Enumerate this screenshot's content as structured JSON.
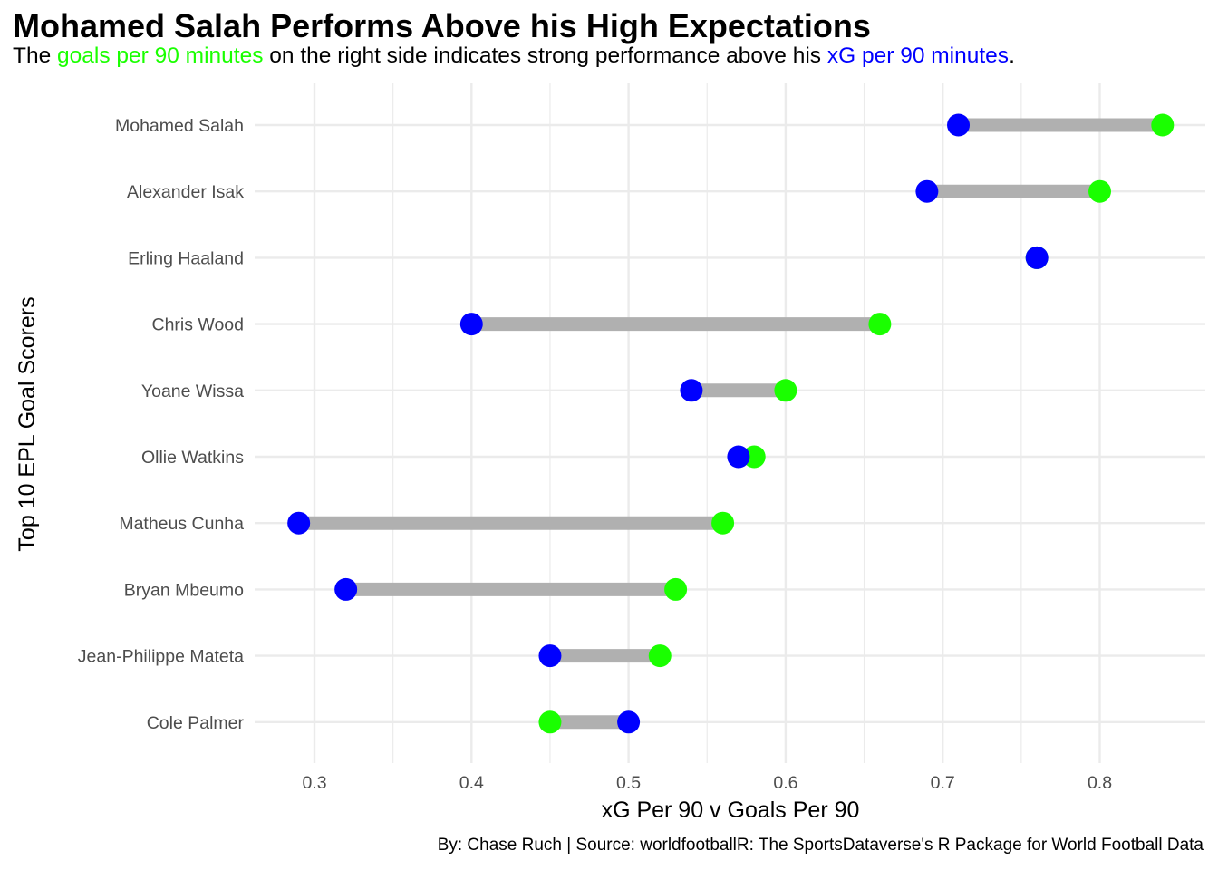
{
  "header": {
    "title": "Mohamed Salah Performs Above his High Expectations",
    "subtitle_parts": {
      "p1": "The ",
      "goals": "goals per 90 minutes",
      "p2": " on the right side indicates strong performance above his ",
      "xg": "xG per 90 minutes",
      "p3": "."
    }
  },
  "caption": "By: Chase Ruch | Source: worldfootballR: The SportsDataverse's R Package for World Football Data",
  "colors": {
    "xg": "#0000ff",
    "goals": "#1aff00",
    "segment": "#b0b0b0",
    "grid": "#ebebeb"
  },
  "chart_data": {
    "type": "dumbbell",
    "xlabel": "xG Per 90 v Goals Per 90",
    "ylabel": "Top 10 EPL Goal Scorers",
    "xlim": [
      0.265,
      0.855
    ],
    "xticks": [
      0.3,
      0.4,
      0.5,
      0.6,
      0.7,
      0.8
    ],
    "xtick_labels": [
      "0.3",
      "0.4",
      "0.5",
      "0.6",
      "0.7",
      "0.8"
    ],
    "players": [
      {
        "name": "Mohamed Salah",
        "xg": 0.71,
        "goals": 0.84
      },
      {
        "name": "Alexander Isak",
        "xg": 0.69,
        "goals": 0.8
      },
      {
        "name": "Erling Haaland",
        "xg": 0.76,
        "goals": 0.76
      },
      {
        "name": "Chris Wood",
        "xg": 0.4,
        "goals": 0.66
      },
      {
        "name": "Yoane Wissa",
        "xg": 0.54,
        "goals": 0.6
      },
      {
        "name": "Ollie Watkins",
        "xg": 0.57,
        "goals": 0.58
      },
      {
        "name": "Matheus Cunha",
        "xg": 0.29,
        "goals": 0.56
      },
      {
        "name": "Bryan Mbeumo",
        "xg": 0.32,
        "goals": 0.53
      },
      {
        "name": "Jean-Philippe Mateta",
        "xg": 0.45,
        "goals": 0.52
      },
      {
        "name": "Cole Palmer",
        "xg": 0.5,
        "goals": 0.45
      }
    ],
    "grid": true,
    "legend": "none"
  }
}
